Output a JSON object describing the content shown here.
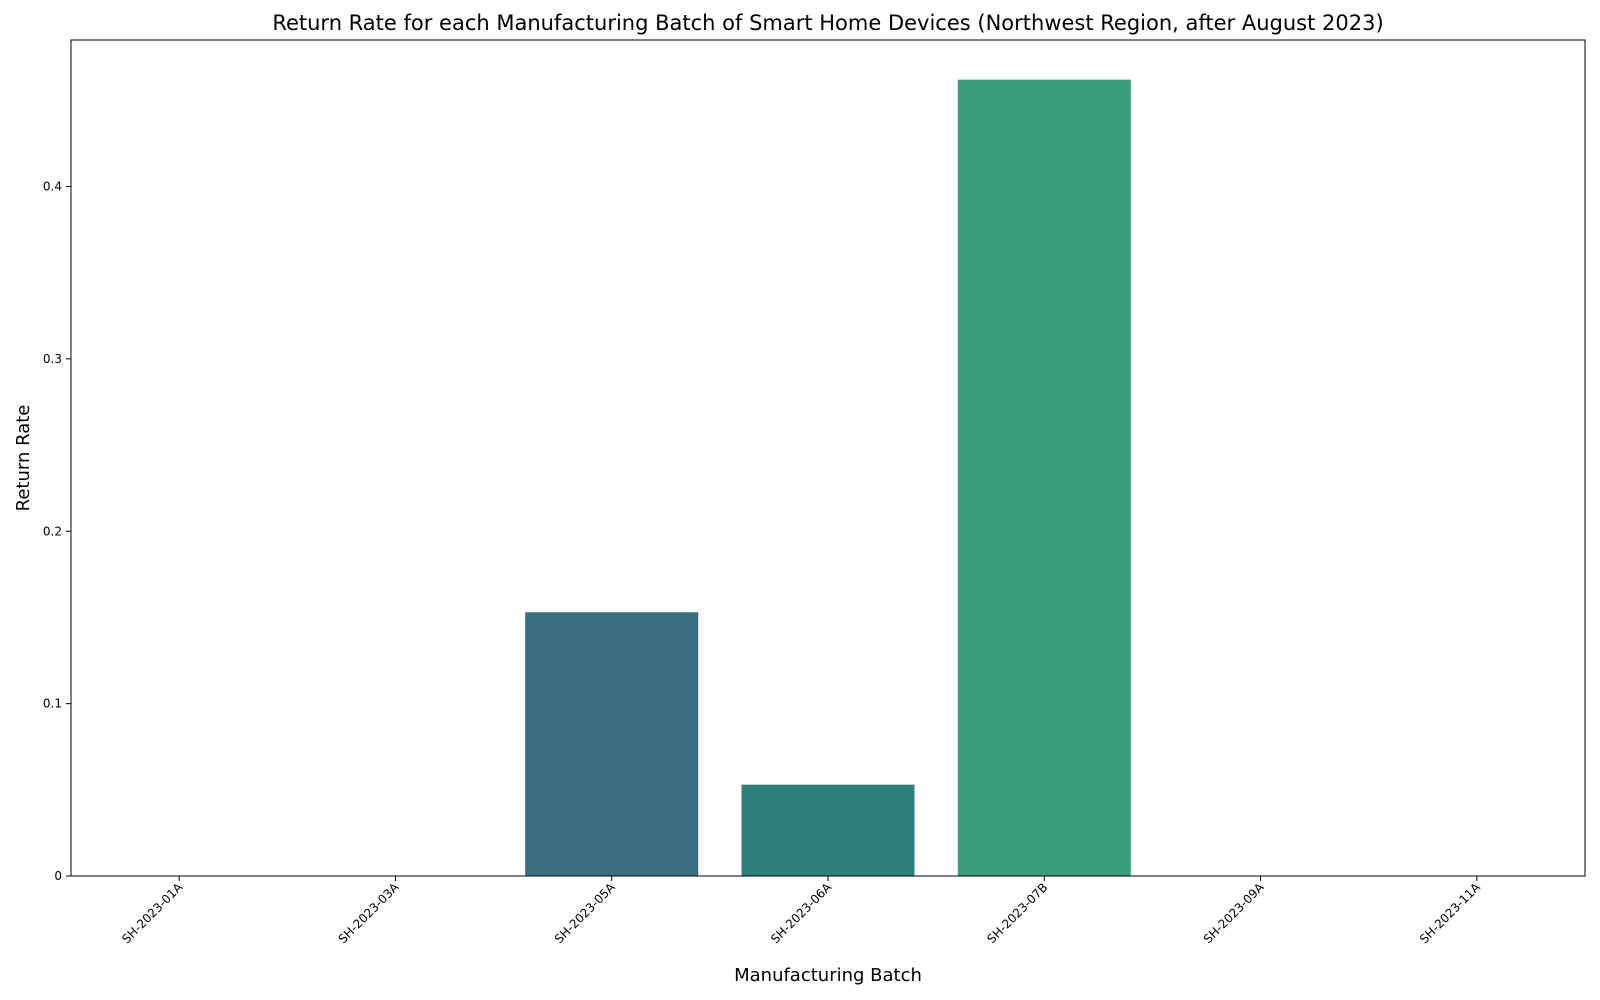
{
  "chart_data": {
    "type": "bar",
    "title": "Return Rate for each Manufacturing Batch of Smart Home Devices (Northwest Region, after August 2023)",
    "x_label": "Manufacturing Batch",
    "y_label": "Return Rate",
    "categories": [
      "SH-2023-01A",
      "SH-2023-03A",
      "SH-2023-05A",
      "SH-2023-06A",
      "SH-2023-07B",
      "SH-2023-09A",
      "SH-2023-11A"
    ],
    "values": [
      0,
      0,
      0.153,
      0.053,
      0.462,
      0,
      0
    ],
    "colors": [
      "#4b3b72",
      "#445886",
      "#3b6e80",
      "#2e807c",
      "#3a9e7c",
      "#6bb95c",
      "#a9c84a"
    ],
    "ylim": [
      0,
      0.485
    ],
    "yticks": [
      0.0,
      0.1,
      0.2,
      0.3,
      0.4
    ],
    "grid": false
  }
}
